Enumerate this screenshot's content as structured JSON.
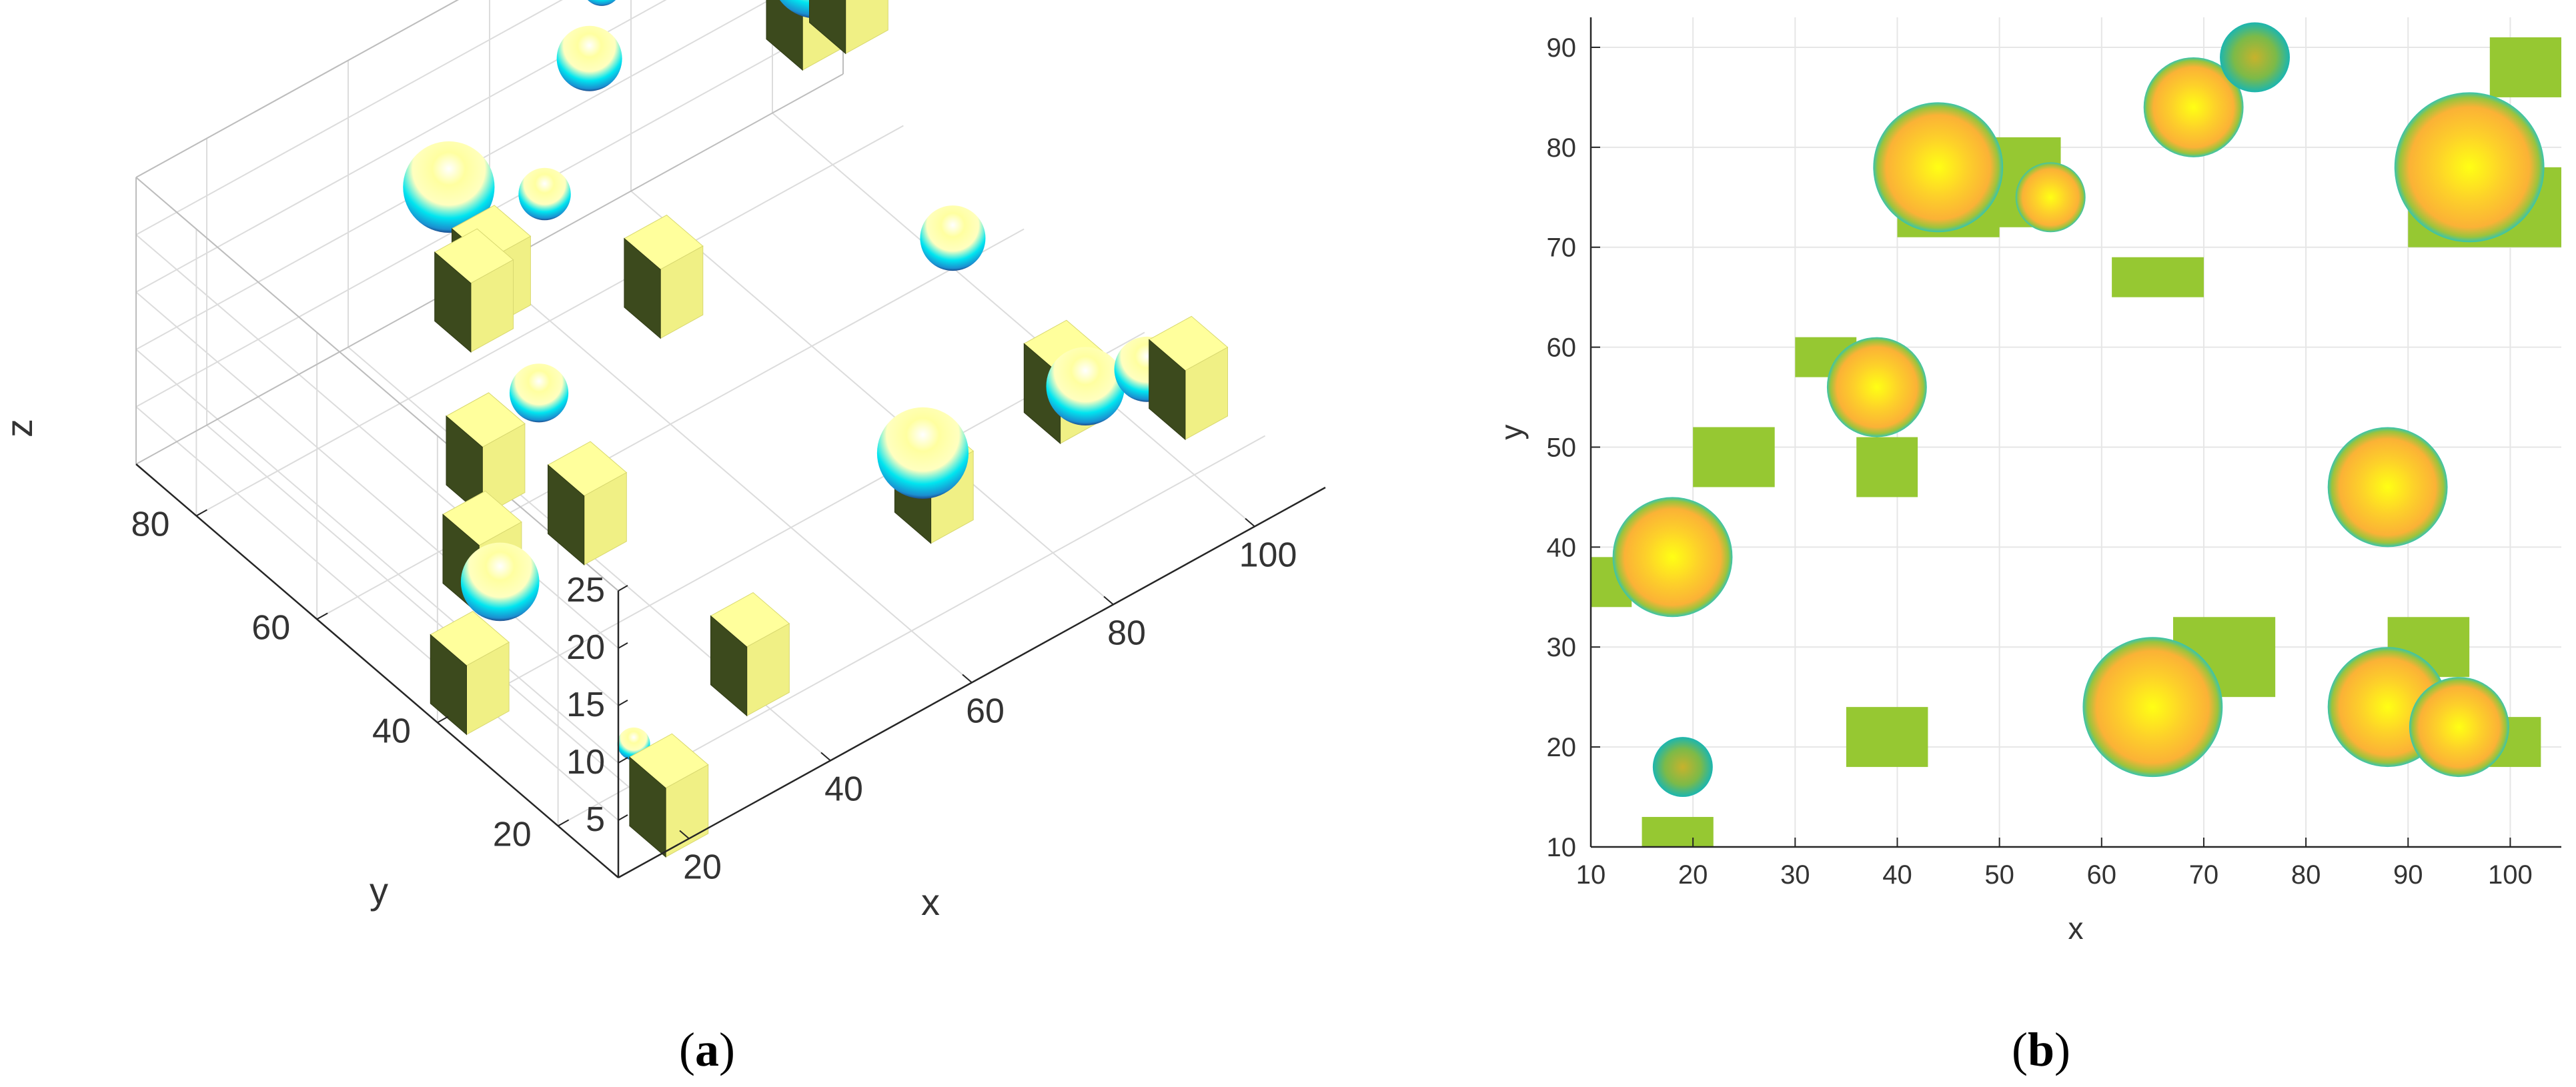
{
  "chart_data": [
    {
      "panel": "a",
      "type": "scatter3d",
      "caption": {
        "open": "(",
        "letter": "a",
        "close": ")"
      },
      "xlabel": "x",
      "ylabel": "y",
      "zlabel": "z",
      "xlim": [
        10,
        110
      ],
      "ylim": [
        10,
        90
      ],
      "zlim": [
        0,
        25
      ],
      "xticks": [
        20,
        40,
        60,
        80,
        100
      ],
      "yticks": [
        20,
        40,
        60,
        80
      ],
      "zticks": [
        5,
        10,
        15,
        20,
        25
      ],
      "grid": true,
      "spheres": [
        {
          "x": 44,
          "y": 78,
          "z": 18,
          "r": 7
        },
        {
          "x": 55,
          "y": 75,
          "z": 15,
          "r": 4
        },
        {
          "x": 69,
          "y": 84,
          "z": 18,
          "r": 5
        },
        {
          "x": 75,
          "y": 89,
          "z": 20,
          "r": 3
        },
        {
          "x": 96,
          "y": 78,
          "z": 19,
          "r": 7
        },
        {
          "x": 38,
          "y": 56,
          "z": 12,
          "r": 4.5
        },
        {
          "x": 88,
          "y": 46,
          "z": 13,
          "r": 5
        },
        {
          "x": 18,
          "y": 39,
          "z": 10,
          "r": 6
        },
        {
          "x": 65,
          "y": 24,
          "z": 12,
          "r": 7
        },
        {
          "x": 88,
          "y": 24,
          "z": 10,
          "r": 6
        },
        {
          "x": 95,
          "y": 22,
          "z": 10,
          "r": 5
        },
        {
          "x": 19,
          "y": 18,
          "z": 5,
          "r": 2.5
        }
      ],
      "cubes": [
        {
          "x": 45,
          "y": 75,
          "z": 10
        },
        {
          "x": 50,
          "y": 78,
          "z": 9
        },
        {
          "x": 65,
          "y": 67,
          "z": 8
        },
        {
          "x": 33,
          "y": 59,
          "z": 7
        },
        {
          "x": 38,
          "y": 48,
          "z": 6
        },
        {
          "x": 24,
          "y": 49,
          "z": 6
        },
        {
          "x": 12,
          "y": 37,
          "z": 5
        },
        {
          "x": 38,
          "y": 21,
          "z": 5
        },
        {
          "x": 70,
          "y": 28,
          "z": 6
        },
        {
          "x": 90,
          "y": 30,
          "z": 7
        },
        {
          "x": 98,
          "y": 75,
          "z": 18
        },
        {
          "x": 100,
          "y": 21,
          "z": 8
        },
        {
          "x": 103,
          "y": 88,
          "z": 9
        },
        {
          "x": 18,
          "y": 11,
          "z": 4
        }
      ],
      "colors": {
        "sphere_light": "#ffffa0",
        "sphere_mid": "#00e5f0",
        "sphere_dark": "#1d2a6a",
        "cube_top": "#ffff9c",
        "cube_side": "#f0f085",
        "cube_dark": "#3c4a1d"
      }
    },
    {
      "panel": "b",
      "type": "scatter",
      "caption": {
        "open": "(",
        "letter": "b",
        "close": ")"
      },
      "xlabel": "x",
      "ylabel": "y",
      "xlim": [
        10,
        105
      ],
      "ylim": [
        10,
        93
      ],
      "xticks": [
        10,
        20,
        30,
        40,
        50,
        60,
        70,
        80,
        90,
        100
      ],
      "yticks": [
        10,
        20,
        30,
        40,
        50,
        60,
        70,
        80,
        90
      ],
      "grid": true,
      "rectangles": [
        {
          "x0": 40,
          "x1": 50,
          "y0": 71,
          "y1": 80
        },
        {
          "x0": 48,
          "x1": 56,
          "y0": 72,
          "y1": 81
        },
        {
          "x0": 61,
          "x1": 70,
          "y0": 65,
          "y1": 69
        },
        {
          "x0": 30,
          "x1": 36,
          "y0": 57,
          "y1": 61
        },
        {
          "x0": 36,
          "x1": 42,
          "y0": 45,
          "y1": 51
        },
        {
          "x0": 20,
          "x1": 28,
          "y0": 46,
          "y1": 52
        },
        {
          "x0": 10,
          "x1": 14,
          "y0": 34,
          "y1": 39
        },
        {
          "x0": 35,
          "x1": 43,
          "y0": 18,
          "y1": 24
        },
        {
          "x0": 67,
          "x1": 77,
          "y0": 25,
          "y1": 33
        },
        {
          "x0": 88,
          "x1": 96,
          "y0": 27,
          "y1": 33
        },
        {
          "x0": 96,
          "x1": 103,
          "y0": 18,
          "y1": 23
        },
        {
          "x0": 90,
          "x1": 105,
          "y0": 70,
          "y1": 78
        },
        {
          "x0": 98,
          "x1": 105,
          "y0": 85,
          "y1": 91
        },
        {
          "x0": 15,
          "x1": 22,
          "y0": 9,
          "y1": 13
        }
      ],
      "circles": [
        {
          "x": 44,
          "y": 78,
          "r": 6.5
        },
        {
          "x": 55,
          "y": 75,
          "r": 3.5
        },
        {
          "x": 69,
          "y": 84,
          "r": 5
        },
        {
          "x": 75,
          "y": 89,
          "r": 3.5
        },
        {
          "x": 96,
          "y": 78,
          "r": 7.5
        },
        {
          "x": 38,
          "y": 56,
          "r": 5
        },
        {
          "x": 88,
          "y": 46,
          "r": 6
        },
        {
          "x": 18,
          "y": 39,
          "r": 6
        },
        {
          "x": 65,
          "y": 24,
          "r": 7
        },
        {
          "x": 88,
          "y": 24,
          "r": 6
        },
        {
          "x": 95,
          "y": 22,
          "r": 5
        },
        {
          "x": 19,
          "y": 18,
          "r": 3
        }
      ],
      "colors": {
        "rect": "#96c832",
        "circle_center": "#ffff14",
        "circle_mid": "#fbb236",
        "circle_edge": "#36c4b0",
        "circle_edge_dark": "#1bb6b0"
      }
    }
  ]
}
